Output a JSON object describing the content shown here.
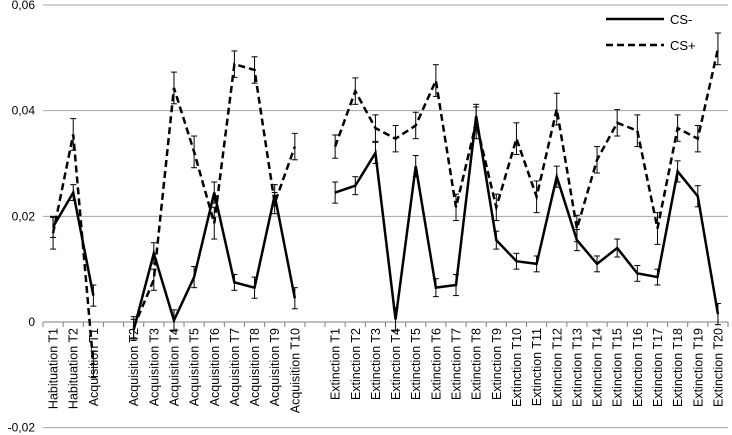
{
  "chart_data": {
    "type": "line",
    "title": "",
    "xlabel": "",
    "ylabel": "",
    "ylim": [
      -0.02,
      0.06
    ],
    "yticks": [
      -0.02,
      0,
      0.02,
      0.04,
      0.06
    ],
    "ytick_labels": [
      "-0,02",
      "0",
      "0,02",
      "0,04",
      "0,06"
    ],
    "grid": true,
    "legend_position": "top-right",
    "categories": [
      "Habituation T1",
      "Habituation T2",
      "Acquisition T1",
      "",
      "Acquisition T2",
      "Acquisition T3",
      "Acquisition T4",
      "Acquisition T5",
      "Acquisition T6",
      "Acquisition T7",
      "Acquisition T8",
      "Acquisition T9",
      "Acquisition T10",
      "",
      "Extinction T1",
      "Extinction T2",
      "Extinction T3",
      "Extinction T4",
      "Extinction T5",
      "Extinction T6",
      "Extinction T7",
      "Extinction T8",
      "Extinction T9",
      "Extinction T10",
      "Extinction T11",
      "Extinction T12",
      "Extinction T13",
      "Extinction T14",
      "Extinction T15",
      "Extinction T16",
      "Extinction T17",
      "Extinction T18",
      "Extinction T19",
      "Extinction T20"
    ],
    "series": [
      {
        "name": "CS-",
        "style": "solid",
        "color": "#000000",
        "values": [
          0.018,
          0.0245,
          0.005,
          null,
          -0.0015,
          0.013,
          0.0003,
          0.0085,
          0.0245,
          0.0075,
          0.0065,
          0.024,
          0.0045,
          null,
          0.0245,
          0.0258,
          0.032,
          0.0005,
          0.0295,
          0.0065,
          0.007,
          0.039,
          0.0155,
          0.0115,
          0.011,
          0.0275,
          0.0155,
          0.011,
          0.014,
          0.0092,
          0.0085,
          0.0285,
          0.0238,
          0.0015
        ],
        "errors": [
          0.002,
          0.0015,
          0.002,
          null,
          0.002,
          0.002,
          0.002,
          0.002,
          0.002,
          0.0015,
          0.002,
          0.002,
          0.002,
          null,
          0.002,
          0.0017,
          0.002,
          0.0022,
          0.002,
          0.0017,
          0.002,
          0.0022,
          0.0017,
          0.0015,
          0.0015,
          0.002,
          0.002,
          0.0015,
          0.0017,
          0.0015,
          0.0015,
          0.002,
          0.002,
          0.002
        ]
      },
      {
        "name": "CS+",
        "style": "dashed",
        "color": "#000000",
        "values": [
          0.0168,
          0.0355,
          -0.008,
          null,
          -0.001,
          0.008,
          0.0443,
          0.0322,
          0.0187,
          0.0488,
          0.0477,
          0.0225,
          0.0332,
          null,
          0.0332,
          0.0437,
          0.0367,
          0.0347,
          0.0372,
          0.0457,
          0.0217,
          0.0377,
          0.0217,
          0.0347,
          0.0237,
          0.0403,
          0.0177,
          0.0307,
          0.0377,
          0.0362,
          0.0177,
          0.0367,
          0.0347,
          0.0517
        ],
        "errors": [
          0.003,
          0.003,
          0.0025,
          null,
          0.002,
          0.002,
          0.003,
          0.003,
          0.003,
          0.0025,
          0.0025,
          0.002,
          0.0025,
          null,
          0.0022,
          0.0025,
          0.0025,
          0.0025,
          0.0025,
          0.003,
          0.0025,
          0.003,
          0.0025,
          0.003,
          0.003,
          0.003,
          0.0025,
          0.0025,
          0.0025,
          0.003,
          0.003,
          0.0025,
          0.0025,
          0.003
        ]
      }
    ]
  }
}
